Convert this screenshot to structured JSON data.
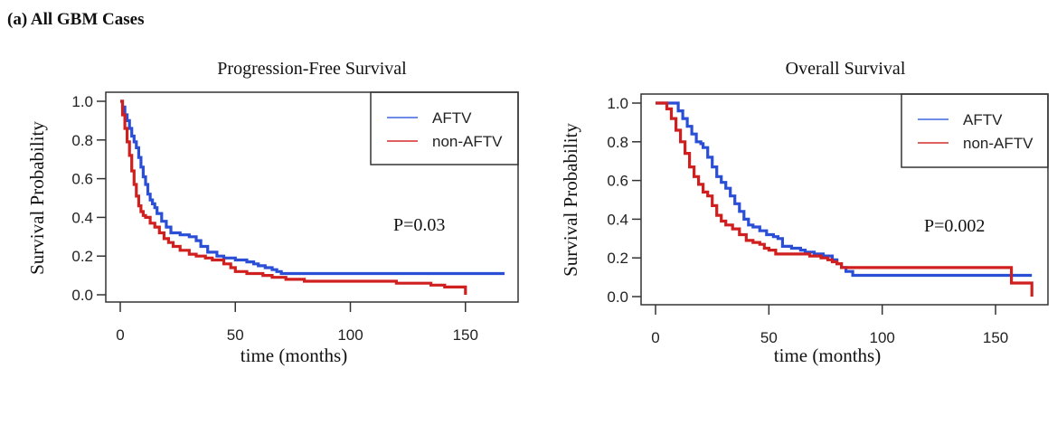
{
  "figure": {
    "panel_label": "(a) All GBM Cases"
  },
  "colors": {
    "AFTV": "#2a4fd6",
    "non-AFTV": "#d01f1f",
    "legend_AFTV": "#6f8be8",
    "legend_non-AFTV": "#e06060"
  },
  "chart_data": [
    {
      "type": "line",
      "subtype": "kaplan-meier-step",
      "title": "Progression-Free Survival",
      "xlabel": "time (months)",
      "ylabel": "Survival Probability",
      "xlim": [
        0,
        170
      ],
      "ylim": [
        0,
        1.0
      ],
      "xticks": [
        0,
        50,
        100,
        150
      ],
      "xtick_labels": [
        "0",
        "50",
        "100",
        "150"
      ],
      "yticks": [
        0.0,
        0.2,
        0.4,
        0.6,
        0.8,
        1.0
      ],
      "ytick_labels": [
        "0.0",
        "0.2",
        "0.4",
        "0.6",
        "0.8",
        "1.0"
      ],
      "grid": false,
      "legend_position": "top-right",
      "annotation": "P=0.03",
      "series": [
        {
          "name": "AFTV",
          "x": [
            0,
            1,
            2,
            3,
            4,
            5,
            6,
            7,
            8,
            9,
            10,
            11,
            12,
            13,
            14,
            15,
            16,
            18,
            20,
            22,
            24,
            26,
            30,
            33,
            35,
            38,
            42,
            45,
            50,
            55,
            58,
            60,
            63,
            66,
            68,
            70,
            167
          ],
          "y": [
            1.0,
            0.97,
            0.93,
            0.9,
            0.86,
            0.82,
            0.79,
            0.76,
            0.71,
            0.66,
            0.61,
            0.57,
            0.52,
            0.49,
            0.47,
            0.45,
            0.42,
            0.38,
            0.35,
            0.32,
            0.32,
            0.31,
            0.3,
            0.28,
            0.25,
            0.22,
            0.2,
            0.19,
            0.18,
            0.17,
            0.16,
            0.15,
            0.14,
            0.13,
            0.12,
            0.11,
            0.11
          ]
        },
        {
          "name": "non-AFTV",
          "x": [
            0,
            1,
            2,
            3,
            4,
            5,
            6,
            7,
            8,
            9,
            10,
            11,
            13,
            15,
            17,
            19,
            21,
            23,
            26,
            30,
            33,
            37,
            40,
            45,
            48,
            50,
            55,
            62,
            66,
            72,
            80,
            85,
            120,
            135,
            141,
            150,
            150
          ],
          "y": [
            1.0,
            0.93,
            0.86,
            0.79,
            0.72,
            0.64,
            0.57,
            0.51,
            0.46,
            0.43,
            0.41,
            0.4,
            0.37,
            0.35,
            0.32,
            0.29,
            0.27,
            0.25,
            0.23,
            0.21,
            0.2,
            0.19,
            0.18,
            0.16,
            0.14,
            0.12,
            0.11,
            0.1,
            0.09,
            0.08,
            0.07,
            0.07,
            0.06,
            0.05,
            0.04,
            0.04,
            0.0
          ]
        }
      ]
    },
    {
      "type": "line",
      "subtype": "kaplan-meier-step",
      "title": "Overall Survival",
      "xlabel": "time (months)",
      "ylabel": "Survival Probability",
      "xlim": [
        0,
        170
      ],
      "ylim": [
        0,
        1.0
      ],
      "xticks": [
        0,
        50,
        100,
        150
      ],
      "xtick_labels": [
        "0",
        "50",
        "100",
        "150"
      ],
      "yticks": [
        0.0,
        0.2,
        0.4,
        0.6,
        0.8,
        1.0
      ],
      "ytick_labels": [
        "0.0",
        "0.2",
        "0.4",
        "0.6",
        "0.8",
        "1.0"
      ],
      "grid": false,
      "legend_position": "top-right",
      "annotation": "P=0.002",
      "series": [
        {
          "name": "AFTV",
          "x": [
            0,
            8,
            10,
            12,
            14,
            16,
            18,
            20,
            21,
            23,
            25,
            27,
            29,
            31,
            33,
            35,
            37,
            39,
            41,
            43,
            46,
            49,
            52,
            54,
            56,
            60,
            64,
            66,
            70,
            74,
            78,
            80,
            82,
            84,
            87,
            166
          ],
          "y": [
            1.0,
            1.0,
            0.96,
            0.92,
            0.88,
            0.84,
            0.8,
            0.79,
            0.77,
            0.72,
            0.67,
            0.62,
            0.59,
            0.56,
            0.52,
            0.48,
            0.44,
            0.4,
            0.37,
            0.36,
            0.34,
            0.32,
            0.31,
            0.3,
            0.26,
            0.25,
            0.24,
            0.23,
            0.22,
            0.21,
            0.19,
            0.17,
            0.15,
            0.13,
            0.11,
            0.11
          ]
        },
        {
          "name": "non-AFTV",
          "x": [
            0,
            3,
            5,
            7,
            9,
            11,
            13,
            15,
            17,
            19,
            21,
            23,
            25,
            27,
            29,
            31,
            34,
            37,
            40,
            43,
            46,
            48,
            50,
            53,
            60,
            68,
            73,
            76,
            78,
            80,
            82,
            157,
            157,
            165,
            166
          ],
          "y": [
            1.0,
            1.0,
            0.97,
            0.92,
            0.86,
            0.8,
            0.74,
            0.67,
            0.62,
            0.58,
            0.54,
            0.52,
            0.47,
            0.42,
            0.39,
            0.37,
            0.35,
            0.32,
            0.29,
            0.28,
            0.27,
            0.25,
            0.24,
            0.22,
            0.22,
            0.21,
            0.2,
            0.19,
            0.18,
            0.17,
            0.15,
            0.15,
            0.07,
            0.07,
            0.0
          ]
        }
      ]
    }
  ]
}
